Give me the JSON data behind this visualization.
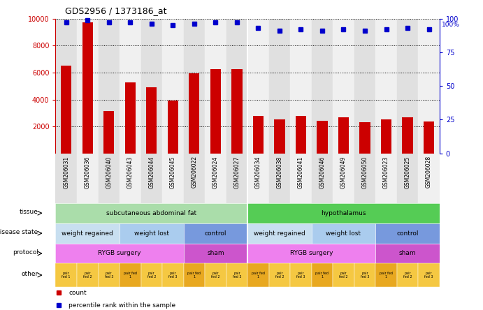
{
  "title": "GDS2956 / 1373186_at",
  "samples": [
    "GSM206031",
    "GSM206036",
    "GSM206040",
    "GSM206043",
    "GSM206044",
    "GSM206045",
    "GSM206022",
    "GSM206024",
    "GSM206027",
    "GSM206034",
    "GSM206038",
    "GSM206041",
    "GSM206046",
    "GSM206049",
    "GSM206050",
    "GSM206023",
    "GSM206025",
    "GSM206028"
  ],
  "counts": [
    6500,
    9700,
    3150,
    5250,
    4900,
    3900,
    5950,
    6250,
    6250,
    2800,
    2550,
    2780,
    2400,
    2680,
    2300,
    2500,
    2680,
    2350
  ],
  "percentile_ranks": [
    97,
    99,
    97,
    97,
    96,
    95,
    96,
    97,
    97,
    93,
    91,
    92,
    91,
    92,
    91,
    92,
    93,
    92
  ],
  "bar_color": "#cc0000",
  "dot_color": "#0000cc",
  "ylim_left": [
    0,
    10000
  ],
  "ylim_right": [
    0,
    100
  ],
  "yticks_left": [
    2000,
    4000,
    6000,
    8000,
    10000
  ],
  "yticks_right": [
    0,
    25,
    50,
    75,
    100
  ],
  "background_color": "#ffffff",
  "col_bg_even": "#e0e0e0",
  "col_bg_odd": "#f0f0f0",
  "tissue_row": {
    "label": "tissue",
    "segments": [
      {
        "text": "subcutaneous abdominal fat",
        "start": 0,
        "end": 9,
        "color": "#aaddaa"
      },
      {
        "text": "hypothalamus",
        "start": 9,
        "end": 18,
        "color": "#55cc55"
      }
    ]
  },
  "disease_state_row": {
    "label": "disease state",
    "segments": [
      {
        "text": "weight regained",
        "start": 0,
        "end": 3,
        "color": "#c8dff0"
      },
      {
        "text": "weight lost",
        "start": 3,
        "end": 6,
        "color": "#aaccee"
      },
      {
        "text": "control",
        "start": 6,
        "end": 9,
        "color": "#7799dd"
      },
      {
        "text": "weight regained",
        "start": 9,
        "end": 12,
        "color": "#c8dff0"
      },
      {
        "text": "weight lost",
        "start": 12,
        "end": 15,
        "color": "#aaccee"
      },
      {
        "text": "control",
        "start": 15,
        "end": 18,
        "color": "#7799dd"
      }
    ]
  },
  "protocol_row": {
    "label": "protocol",
    "segments": [
      {
        "text": "RYGB surgery",
        "start": 0,
        "end": 6,
        "color": "#ee80ee"
      },
      {
        "text": "sham",
        "start": 6,
        "end": 9,
        "color": "#cc55cc"
      },
      {
        "text": "RYGB surgery",
        "start": 9,
        "end": 15,
        "color": "#ee80ee"
      },
      {
        "text": "sham",
        "start": 15,
        "end": 18,
        "color": "#cc55cc"
      }
    ]
  },
  "other_row": {
    "label": "other",
    "cells": [
      "pair\nfed 1",
      "pair\nfed 2",
      "pair\nfed 3",
      "pair fed\n1",
      "pair\nfed 2",
      "pair\nfed 3",
      "pair fed\n1",
      "pair\nfed 2",
      "pair\nfed 3",
      "pair fed\n1",
      "pair\nfed 2",
      "pair\nfed 3",
      "pair fed\n1",
      "pair\nfed 2",
      "pair\nfed 3",
      "pair fed\n1",
      "pair\nfed 2",
      "pair\nfed 3"
    ],
    "cell_colors_alt": [
      "#f5c842",
      "#e8a820"
    ],
    "cell_color_pattern": [
      0,
      0,
      0,
      1,
      0,
      0,
      1,
      0,
      0,
      1,
      0,
      0,
      1,
      0,
      0,
      1,
      0,
      0
    ]
  },
  "legend_items": [
    {
      "label": "count",
      "color": "#cc0000"
    },
    {
      "label": "percentile rank within the sample",
      "color": "#0000cc"
    }
  ],
  "ylabel_left_color": "#cc0000",
  "ylabel_right_color": "#0000cc"
}
